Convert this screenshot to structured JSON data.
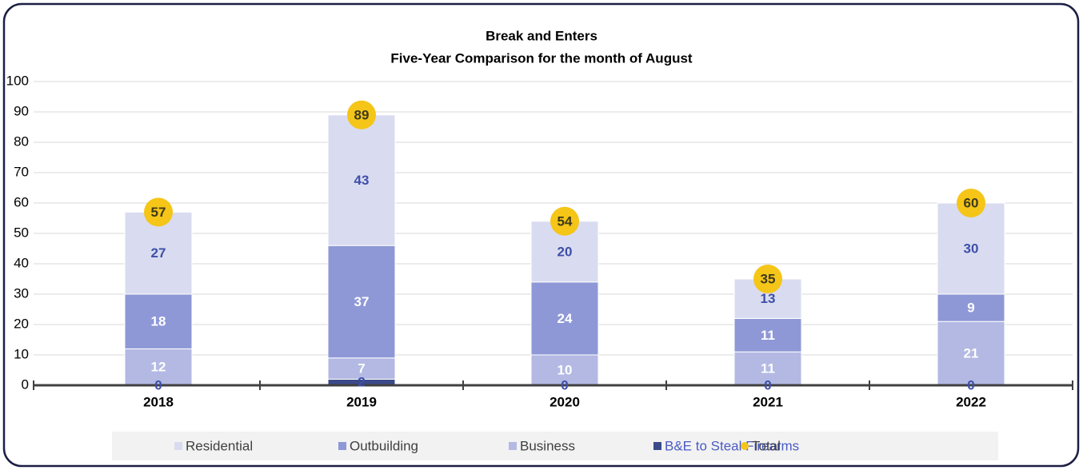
{
  "chart_data": {
    "type": "bar",
    "stacked": true,
    "title": "Break and Enters",
    "subtitle": "Five-Year Comparison for the month of August",
    "categories": [
      "2018",
      "2019",
      "2020",
      "2021",
      "2022"
    ],
    "series": [
      {
        "name": "B&E to Steal Firearms",
        "color": "#3b4a8a",
        "label_color": "#3e4fa8",
        "values": [
          0,
          2,
          0,
          0,
          0
        ]
      },
      {
        "name": "Business",
        "color": "#b3b9e3",
        "label_color": "#ffffff",
        "values": [
          12,
          7,
          10,
          11,
          21
        ]
      },
      {
        "name": "Outbuilding",
        "color": "#8e98d6",
        "label_color": "#ffffff",
        "values": [
          18,
          37,
          24,
          11,
          9
        ]
      },
      {
        "name": "Residential",
        "color": "#d9dcf0",
        "label_color": "#3e4fa8",
        "values": [
          27,
          43,
          20,
          13,
          30
        ]
      },
      {
        "name": "Total",
        "type": "scatter",
        "color": "#f5c518",
        "label_color": "#3d3a1a",
        "values": [
          57,
          89,
          54,
          35,
          60
        ]
      }
    ],
    "legend_order": [
      3,
      2,
      1,
      0,
      4
    ],
    "ylim": [
      0,
      100
    ],
    "yticks": [
      0,
      10,
      20,
      30,
      40,
      50,
      60,
      70,
      80,
      90,
      100
    ],
    "grid": true,
    "legend": "bottom"
  }
}
